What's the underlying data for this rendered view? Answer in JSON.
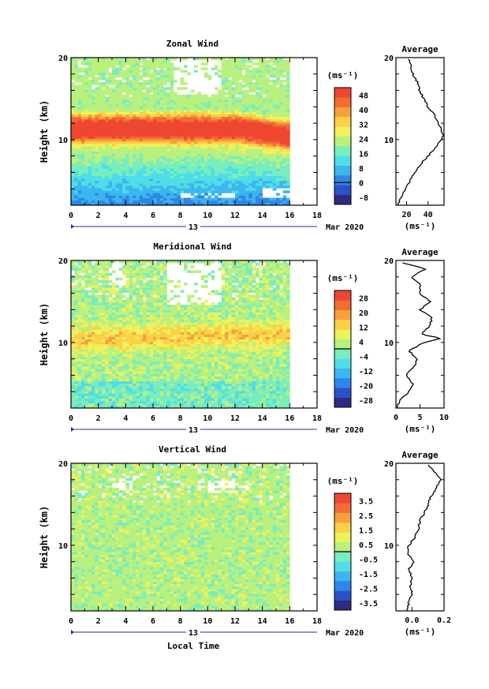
{
  "colors": {
    "zonal": [
      "#2e2c7e",
      "#2b52c8",
      "#2e86e8",
      "#3cb6ee",
      "#4fdde8",
      "#78edbe",
      "#b9f07e",
      "#eef25c",
      "#fbd046",
      "#f7a03b",
      "#f36c35",
      "#ef4632"
    ],
    "meridional": [
      "#2e2c7e",
      "#2b52c8",
      "#2e86e8",
      "#3cb6ee",
      "#4fdde8",
      "#78edbe",
      "#b9f07e",
      "#eef25c",
      "#fbd046",
      "#f7a03b",
      "#f36c35",
      "#ef4632"
    ],
    "vertical": [
      "#2e2c7e",
      "#2b52c8",
      "#2e86e8",
      "#3cb6ee",
      "#4fdde8",
      "#78edbe",
      "#b9f07e",
      "#eef25c",
      "#fbd046",
      "#f7a03b",
      "#f36c35",
      "#ef4632"
    ]
  },
  "shared": {
    "x_ticks": [
      "0",
      "2",
      "4",
      "6",
      "8",
      "10",
      "12",
      "14",
      "16",
      "18"
    ],
    "date_day": "13",
    "date_month": "Mar 2020",
    "x_axis_title": "Local Time"
  },
  "chart_data": [
    {
      "type": "heatmap",
      "title": "Zonal Wind",
      "ylabel": "Height (km)",
      "units": "(ms⁻¹)",
      "xlim": [
        0,
        18
      ],
      "ylim": [
        2,
        20
      ],
      "y_ticks": [
        "20",
        "10"
      ],
      "data_extent_hours": [
        0,
        16
      ],
      "colorbar_ticks": [
        "48",
        "40",
        "32",
        "24",
        "16",
        "8",
        "0",
        "-8"
      ],
      "colorbar_range": [
        -12,
        52
      ],
      "profile": {
        "title": "Average",
        "xlim": [
          10,
          55
        ],
        "x_ticks": [
          "20",
          "40"
        ],
        "y_ticks": [
          "20",
          "10"
        ],
        "xlabel": "(ms⁻¹)",
        "height": [
          2,
          3,
          4,
          5,
          6,
          7,
          8,
          9,
          10,
          10.5,
          11,
          12,
          13,
          14,
          15,
          16,
          17,
          18,
          19,
          19.8
        ],
        "value": [
          12,
          15,
          19,
          23,
          28,
          33,
          40,
          47,
          52,
          54,
          53,
          50,
          46,
          40,
          36,
          32,
          30,
          26,
          24,
          22
        ]
      },
      "field": {
        "kind": "jet",
        "base_low": 2,
        "base_mid": 30,
        "jet_peak": 56,
        "jet_center_km": 11.2,
        "jet_width_km": 2.4,
        "top_value": 22,
        "gaps": [
          [
            0,
            0,
            2.8,
            19.5
          ],
          [
            7.5,
            11,
            15.5,
            19.5
          ],
          [
            8,
            12,
            2.6,
            3.4
          ],
          [
            14,
            16,
            2.6,
            4
          ]
        ]
      }
    },
    {
      "type": "heatmap",
      "title": "Meridional Wind",
      "ylabel": "Height (km)",
      "units": "(ms⁻¹)",
      "xlim": [
        0,
        18
      ],
      "ylim": [
        2,
        20
      ],
      "y_ticks": [
        "20",
        "10"
      ],
      "data_extent_hours": [
        0,
        16
      ],
      "colorbar_ticks": [
        "28",
        "20",
        "12",
        "4",
        "-4",
        "-12",
        "-20",
        "-28"
      ],
      "colorbar_range": [
        -32,
        32
      ],
      "profile": {
        "title": "Average",
        "xlim": [
          0,
          10
        ],
        "x_ticks": [
          "0",
          "5",
          "10"
        ],
        "y_ticks": [
          "20",
          "10"
        ],
        "xlabel": "(ms⁻¹)",
        "height": [
          2,
          2.5,
          3,
          4,
          5,
          6,
          7,
          8,
          9,
          10,
          10.5,
          11,
          12,
          13,
          14,
          15,
          16,
          17,
          18,
          19,
          19.7
        ],
        "value": [
          0.2,
          0.5,
          1.0,
          2.8,
          3.5,
          2.0,
          3.8,
          4.4,
          2.7,
          5.8,
          9.5,
          5.3,
          7.0,
          7.5,
          5.0,
          7.3,
          4.8,
          5.2,
          3.3,
          6.2,
          1.3
        ]
      },
      "field": {
        "kind": "meridional",
        "base": 2,
        "band_center_km": 10.2,
        "band_peak": 12,
        "band_width_km": 1.4,
        "gaps": [
          [
            7,
            11,
            14.5,
            19.5
          ],
          [
            3,
            4,
            17,
            19.5
          ]
        ]
      }
    },
    {
      "type": "heatmap",
      "title": "Vertical Wind",
      "ylabel": "Height (km)",
      "units": "(ms⁻¹)",
      "xlim": [
        0,
        18
      ],
      "ylim": [
        2,
        20
      ],
      "y_ticks": [
        "20",
        "10"
      ],
      "data_extent_hours": [
        0,
        16
      ],
      "colorbar_ticks": [
        "3.5",
        "2.5",
        "1.5",
        "0.5",
        "-0.5",
        "-1.5",
        "-2.5",
        "-3.5"
      ],
      "colorbar_range": [
        -4,
        4
      ],
      "profile": {
        "title": "Average",
        "xlim": [
          -0.1,
          0.2
        ],
        "x_ticks": [
          "0.0",
          "0.2"
        ],
        "y_ticks": [
          "20",
          "10"
        ],
        "xlabel": "(ms⁻¹)",
        "height": [
          2,
          3,
          4,
          5,
          6,
          7,
          8,
          9,
          10,
          11,
          12,
          13,
          14,
          15,
          16,
          17,
          18,
          19,
          19.8
        ],
        "value": [
          -0.03,
          -0.02,
          0.0,
          -0.01,
          0.0,
          -0.02,
          0.01,
          -0.03,
          -0.02,
          0.02,
          0.04,
          0.05,
          0.08,
          0.1,
          0.12,
          0.15,
          0.18,
          0.14,
          0.1
        ]
      },
      "field": {
        "kind": "vertical",
        "base": 0.0,
        "noise": 0.5,
        "gaps": [
          [
            3,
            4.5,
            16.5,
            18
          ],
          [
            10,
            13,
            16.2,
            17.8
          ]
        ]
      }
    }
  ]
}
